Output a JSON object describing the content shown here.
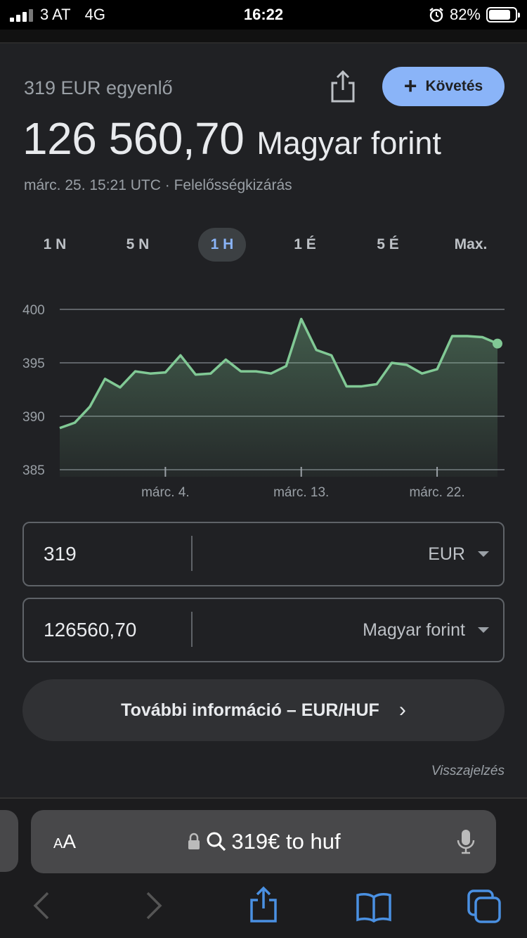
{
  "status": {
    "carrier": "3 AT",
    "network": "4G",
    "time": "16:22",
    "battery": "82%",
    "battery_level": 0.82
  },
  "header": {
    "equals_label": "319 EUR egyenlő",
    "follow_label": "Követés",
    "value": "126 560,70",
    "currency": "Magyar forint",
    "meta": "márc. 25. 15:21 UTC · Felelősségkizárás"
  },
  "tabs": [
    {
      "label": "1 N",
      "active": false
    },
    {
      "label": "5 N",
      "active": false
    },
    {
      "label": "1 H",
      "active": true
    },
    {
      "label": "1 É",
      "active": false
    },
    {
      "label": "5 É",
      "active": false
    },
    {
      "label": "Max.",
      "active": false
    }
  ],
  "chart_data": {
    "type": "area",
    "title": "",
    "xlabel": "",
    "ylabel": "",
    "ylim": [
      385,
      400
    ],
    "yticks": [
      400,
      395,
      390,
      385
    ],
    "xticks": [
      {
        "label": "márc. 4.",
        "index": 7
      },
      {
        "label": "márc. 13.",
        "index": 16
      },
      {
        "label": "márc. 22.",
        "index": 25
      }
    ],
    "grid": true,
    "line_color": "#81c995",
    "series": [
      {
        "values": [
          388.9,
          389.4,
          390.9,
          393.5,
          392.7,
          394.2,
          394.0,
          394.1,
          395.7,
          393.9,
          394.0,
          395.3,
          394.2,
          394.2,
          394.0,
          394.7,
          399.1,
          396.2,
          395.7,
          392.8,
          392.8,
          393.0,
          395.0,
          394.8,
          394.0,
          394.4,
          397.5,
          397.5,
          397.4,
          396.8
        ]
      }
    ]
  },
  "converter": {
    "from_value": "319",
    "from_unit": "EUR",
    "to_value": "126560,70",
    "to_unit": "Magyar forint"
  },
  "more_info": "További információ – EUR/HUF",
  "feedback": "Visszajelzés",
  "safari": {
    "aa_small": "A",
    "aa_big": "A",
    "url": "319€ to huf"
  },
  "colors": {
    "accent": "#8ab4f8",
    "background": "#202124",
    "chart_line": "#81c995"
  }
}
